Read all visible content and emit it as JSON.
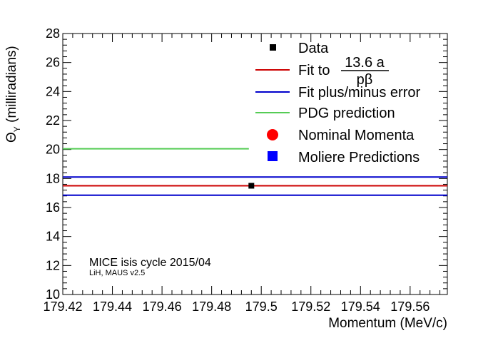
{
  "chart_data": {
    "type": "scatter",
    "title": "",
    "xlabel": "Momentum (MeV/c)",
    "ylabel_symbol": "Θ",
    "ylabel_sub": "Y",
    "ylabel_rest": " (milliradians)",
    "xlim": [
      179.42,
      179.575
    ],
    "ylim": [
      10,
      28
    ],
    "xticks": [
      179.42,
      179.44,
      179.46,
      179.48,
      179.5,
      179.52,
      179.54,
      179.56
    ],
    "xtick_labels": [
      "179.42",
      "179.44",
      "179.46",
      "179.48",
      "179.5",
      "179.52",
      "179.54",
      "179.56"
    ],
    "yticks": [
      10,
      12,
      14,
      16,
      18,
      20,
      22,
      24,
      26,
      28
    ],
    "ytick_labels": [
      "10",
      "12",
      "14",
      "16",
      "18",
      "20",
      "22",
      "24",
      "26",
      "28"
    ],
    "grid": false,
    "legend_position": "top-right",
    "series": [
      {
        "name": "Data",
        "kind": "points",
        "color": "#000000",
        "points": [
          {
            "x": 179.496,
            "y": 17.5,
            "yerr": 0.15
          }
        ]
      }
    ],
    "lines": [
      {
        "key": "fit",
        "color": "#cc0000",
        "y": 17.5,
        "x_start": 179.42,
        "x_end": 179.575
      },
      {
        "key": "fit_upper",
        "color": "#0000cc",
        "y": 18.1,
        "x_start": 179.42,
        "x_end": 179.575
      },
      {
        "key": "fit_lower",
        "color": "#0000cc",
        "y": 16.85,
        "x_start": 179.42,
        "x_end": 179.575
      },
      {
        "key": "pdg",
        "color": "#55cc55",
        "y": 20.05,
        "x_start": 179.42,
        "x_end": 179.495
      }
    ],
    "legend": [
      {
        "key": "data",
        "label": "Data",
        "marker": "small-square",
        "color": "#000000"
      },
      {
        "key": "fit",
        "label": "Fit to",
        "marker": "line",
        "color": "#cc0000",
        "fraction_numerator": "13.6 a",
        "fraction_denominator": "pβ"
      },
      {
        "key": "fit_err",
        "label": "Fit plus/minus error",
        "marker": "line",
        "color": "#0000cc"
      },
      {
        "key": "pdg",
        "label": "PDG prediction",
        "marker": "line",
        "color": "#55cc55"
      },
      {
        "key": "nominal",
        "label": "Nominal Momenta",
        "marker": "circle",
        "color": "#ff0000"
      },
      {
        "key": "moliere",
        "label": "Moliere Predictions",
        "marker": "square",
        "color": "#0000ff"
      }
    ],
    "annotations": {
      "experiment": "MICE isis cycle 2015/04",
      "software": "LiH, MAUS v2.5"
    }
  }
}
